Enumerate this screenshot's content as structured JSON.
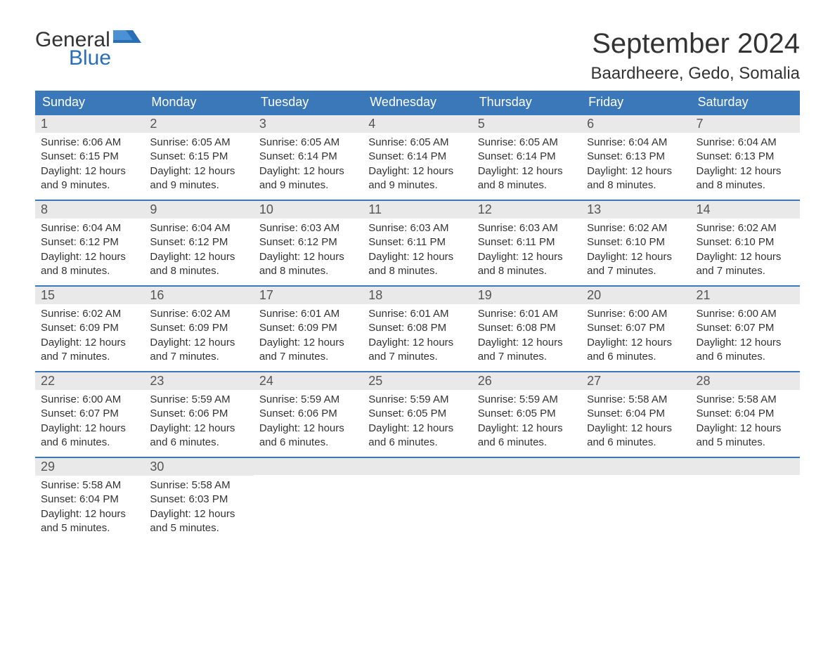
{
  "logo": {
    "text1": "General",
    "text2": "Blue",
    "icon_color": "#296fb7"
  },
  "title": "September 2024",
  "location": "Baardheere, Gedo, Somalia",
  "colors": {
    "header_bg": "#3a78b9",
    "header_text": "#ffffff",
    "daynum_bg": "#e9e9e9",
    "border": "#3a78b9",
    "text": "#333333",
    "logo_blue": "#296fb7"
  },
  "day_labels": [
    "Sunday",
    "Monday",
    "Tuesday",
    "Wednesday",
    "Thursday",
    "Friday",
    "Saturday"
  ],
  "weeks": [
    [
      {
        "num": "1",
        "sunrise": "Sunrise: 6:06 AM",
        "sunset": "Sunset: 6:15 PM",
        "daylight": "Daylight: 12 hours and 9 minutes."
      },
      {
        "num": "2",
        "sunrise": "Sunrise: 6:05 AM",
        "sunset": "Sunset: 6:15 PM",
        "daylight": "Daylight: 12 hours and 9 minutes."
      },
      {
        "num": "3",
        "sunrise": "Sunrise: 6:05 AM",
        "sunset": "Sunset: 6:14 PM",
        "daylight": "Daylight: 12 hours and 9 minutes."
      },
      {
        "num": "4",
        "sunrise": "Sunrise: 6:05 AM",
        "sunset": "Sunset: 6:14 PM",
        "daylight": "Daylight: 12 hours and 9 minutes."
      },
      {
        "num": "5",
        "sunrise": "Sunrise: 6:05 AM",
        "sunset": "Sunset: 6:14 PM",
        "daylight": "Daylight: 12 hours and 8 minutes."
      },
      {
        "num": "6",
        "sunrise": "Sunrise: 6:04 AM",
        "sunset": "Sunset: 6:13 PM",
        "daylight": "Daylight: 12 hours and 8 minutes."
      },
      {
        "num": "7",
        "sunrise": "Sunrise: 6:04 AM",
        "sunset": "Sunset: 6:13 PM",
        "daylight": "Daylight: 12 hours and 8 minutes."
      }
    ],
    [
      {
        "num": "8",
        "sunrise": "Sunrise: 6:04 AM",
        "sunset": "Sunset: 6:12 PM",
        "daylight": "Daylight: 12 hours and 8 minutes."
      },
      {
        "num": "9",
        "sunrise": "Sunrise: 6:04 AM",
        "sunset": "Sunset: 6:12 PM",
        "daylight": "Daylight: 12 hours and 8 minutes."
      },
      {
        "num": "10",
        "sunrise": "Sunrise: 6:03 AM",
        "sunset": "Sunset: 6:12 PM",
        "daylight": "Daylight: 12 hours and 8 minutes."
      },
      {
        "num": "11",
        "sunrise": "Sunrise: 6:03 AM",
        "sunset": "Sunset: 6:11 PM",
        "daylight": "Daylight: 12 hours and 8 minutes."
      },
      {
        "num": "12",
        "sunrise": "Sunrise: 6:03 AM",
        "sunset": "Sunset: 6:11 PM",
        "daylight": "Daylight: 12 hours and 8 minutes."
      },
      {
        "num": "13",
        "sunrise": "Sunrise: 6:02 AM",
        "sunset": "Sunset: 6:10 PM",
        "daylight": "Daylight: 12 hours and 7 minutes."
      },
      {
        "num": "14",
        "sunrise": "Sunrise: 6:02 AM",
        "sunset": "Sunset: 6:10 PM",
        "daylight": "Daylight: 12 hours and 7 minutes."
      }
    ],
    [
      {
        "num": "15",
        "sunrise": "Sunrise: 6:02 AM",
        "sunset": "Sunset: 6:09 PM",
        "daylight": "Daylight: 12 hours and 7 minutes."
      },
      {
        "num": "16",
        "sunrise": "Sunrise: 6:02 AM",
        "sunset": "Sunset: 6:09 PM",
        "daylight": "Daylight: 12 hours and 7 minutes."
      },
      {
        "num": "17",
        "sunrise": "Sunrise: 6:01 AM",
        "sunset": "Sunset: 6:09 PM",
        "daylight": "Daylight: 12 hours and 7 minutes."
      },
      {
        "num": "18",
        "sunrise": "Sunrise: 6:01 AM",
        "sunset": "Sunset: 6:08 PM",
        "daylight": "Daylight: 12 hours and 7 minutes."
      },
      {
        "num": "19",
        "sunrise": "Sunrise: 6:01 AM",
        "sunset": "Sunset: 6:08 PM",
        "daylight": "Daylight: 12 hours and 7 minutes."
      },
      {
        "num": "20",
        "sunrise": "Sunrise: 6:00 AM",
        "sunset": "Sunset: 6:07 PM",
        "daylight": "Daylight: 12 hours and 6 minutes."
      },
      {
        "num": "21",
        "sunrise": "Sunrise: 6:00 AM",
        "sunset": "Sunset: 6:07 PM",
        "daylight": "Daylight: 12 hours and 6 minutes."
      }
    ],
    [
      {
        "num": "22",
        "sunrise": "Sunrise: 6:00 AM",
        "sunset": "Sunset: 6:07 PM",
        "daylight": "Daylight: 12 hours and 6 minutes."
      },
      {
        "num": "23",
        "sunrise": "Sunrise: 5:59 AM",
        "sunset": "Sunset: 6:06 PM",
        "daylight": "Daylight: 12 hours and 6 minutes."
      },
      {
        "num": "24",
        "sunrise": "Sunrise: 5:59 AM",
        "sunset": "Sunset: 6:06 PM",
        "daylight": "Daylight: 12 hours and 6 minutes."
      },
      {
        "num": "25",
        "sunrise": "Sunrise: 5:59 AM",
        "sunset": "Sunset: 6:05 PM",
        "daylight": "Daylight: 12 hours and 6 minutes."
      },
      {
        "num": "26",
        "sunrise": "Sunrise: 5:59 AM",
        "sunset": "Sunset: 6:05 PM",
        "daylight": "Daylight: 12 hours and 6 minutes."
      },
      {
        "num": "27",
        "sunrise": "Sunrise: 5:58 AM",
        "sunset": "Sunset: 6:04 PM",
        "daylight": "Daylight: 12 hours and 6 minutes."
      },
      {
        "num": "28",
        "sunrise": "Sunrise: 5:58 AM",
        "sunset": "Sunset: 6:04 PM",
        "daylight": "Daylight: 12 hours and 5 minutes."
      }
    ],
    [
      {
        "num": "29",
        "sunrise": "Sunrise: 5:58 AM",
        "sunset": "Sunset: 6:04 PM",
        "daylight": "Daylight: 12 hours and 5 minutes."
      },
      {
        "num": "30",
        "sunrise": "Sunrise: 5:58 AM",
        "sunset": "Sunset: 6:03 PM",
        "daylight": "Daylight: 12 hours and 5 minutes."
      },
      {
        "empty": true
      },
      {
        "empty": true
      },
      {
        "empty": true
      },
      {
        "empty": true
      },
      {
        "empty": true
      }
    ]
  ]
}
